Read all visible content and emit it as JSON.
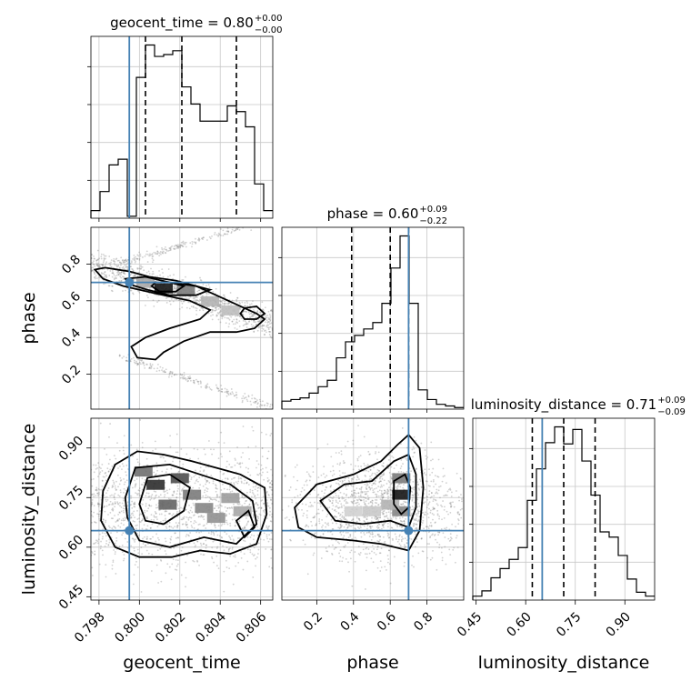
{
  "chart_data": {
    "type": "corner",
    "truth_color": "#4682b4",
    "hist_color": "#000000",
    "parameters": [
      {
        "name": "geocent_time",
        "axis_label": "geocent_time",
        "range": [
          0.7976,
          0.8066
        ],
        "ticks": [
          0.798,
          0.8,
          0.802,
          0.804,
          0.806
        ],
        "tick_labels": [
          "0.798",
          "0.800",
          "0.802",
          "0.804",
          "0.806"
        ],
        "truth": 0.7995,
        "quantile_lines": [
          0.8003,
          0.8021,
          0.8048
        ],
        "title": {
          "label": "geocent_time",
          "median": "0.80",
          "plus": "+0.00",
          "minus": "−0.00"
        },
        "histogram": {
          "bins": [
            0.7976,
            0.79805,
            0.7985,
            0.79895,
            0.7994,
            0.79985,
            0.8003,
            0.80075,
            0.8012,
            0.80165,
            0.8021,
            0.80255,
            0.803,
            0.80345,
            0.8039,
            0.80435,
            0.8048,
            0.80525,
            0.8057,
            0.80615,
            0.8066
          ],
          "counts": [
            0.2,
            0.7,
            1.4,
            1.55,
            0.05,
            3.7,
            4.55,
            4.25,
            4.3,
            4.4,
            3.45,
            3.0,
            2.55,
            2.55,
            2.55,
            2.95,
            2.8,
            2.4,
            0.9,
            0.2
          ]
        }
      },
      {
        "name": "phase",
        "axis_label": "phase",
        "range": [
          0.01,
          1.0
        ],
        "ticks": [
          0.2,
          0.4,
          0.6,
          0.8
        ],
        "tick_labels": [
          "0.2",
          "0.4",
          "0.6",
          "0.8"
        ],
        "truth": 0.7,
        "quantile_lines": [
          0.39,
          0.6,
          0.7
        ],
        "title": {
          "label": "phase",
          "median": "0.60",
          "plus": "+0.09",
          "minus": "−0.22"
        },
        "histogram": {
          "bins": [
            0.01,
            0.0595,
            0.109,
            0.1585,
            0.208,
            0.2575,
            0.307,
            0.3565,
            0.406,
            0.4555,
            0.505,
            0.5545,
            0.604,
            0.6535,
            0.703,
            0.7525,
            0.802,
            0.8515,
            0.901,
            0.9505,
            1.0
          ],
          "counts": [
            0.25,
            0.3,
            0.35,
            0.5,
            0.7,
            0.9,
            1.6,
            2.1,
            2.3,
            2.5,
            2.7,
            3.3,
            4.4,
            5.4,
            3.3,
            0.6,
            0.3,
            0.15,
            0.1,
            0.05
          ]
        }
      },
      {
        "name": "luminosity_distance",
        "axis_label": "luminosity_distance",
        "range": [
          0.44,
          0.99
        ],
        "ticks": [
          0.45,
          0.6,
          0.75,
          0.9
        ],
        "tick_labels": [
          "0.45",
          "0.60",
          "0.75",
          "0.90"
        ],
        "truth": 0.65,
        "quantile_lines": [
          0.62,
          0.715,
          0.81
        ],
        "title": {
          "label": "luminosity_distance",
          "median": "0.71",
          "plus": "+0.09",
          "minus": "−0.09"
        },
        "histogram": {
          "bins": [
            0.44,
            0.4675,
            0.495,
            0.5225,
            0.55,
            0.5775,
            0.605,
            0.6325,
            0.66,
            0.6875,
            0.715,
            0.7425,
            0.77,
            0.7975,
            0.825,
            0.8525,
            0.88,
            0.9075,
            0.935,
            0.9625,
            0.99
          ],
          "counts": [
            0.15,
            0.35,
            0.85,
            1.2,
            1.55,
            2.0,
            3.8,
            5.0,
            6.0,
            6.6,
            5.95,
            6.5,
            5.3,
            4.0,
            2.6,
            2.4,
            1.7,
            0.8,
            0.3,
            0.15
          ]
        }
      }
    ],
    "joint": [
      {
        "x": "geocent_time",
        "y": "phase",
        "samples_description": "dense band of points from upper-left to lower-right plus two faint diagonal bands",
        "density_cells": [
          {
            "x": 0.8012,
            "y": 0.67,
            "level": 0.95
          },
          {
            "x": 0.8023,
            "y": 0.66,
            "level": 0.5
          },
          {
            "x": 0.8003,
            "y": 0.7,
            "level": 0.3
          },
          {
            "x": 0.8035,
            "y": 0.6,
            "level": 0.25
          },
          {
            "x": 0.8045,
            "y": 0.55,
            "level": 0.2
          }
        ],
        "contours": [
          [
            [
              0.7978,
              0.77
            ],
            [
              0.7983,
              0.78
            ],
            [
              0.7995,
              0.76
            ],
            [
              0.8005,
              0.73
            ],
            [
              0.8018,
              0.71
            ],
            [
              0.8028,
              0.68
            ],
            [
              0.8038,
              0.63
            ],
            [
              0.8048,
              0.58
            ],
            [
              0.8058,
              0.53
            ],
            [
              0.8062,
              0.5
            ],
            [
              0.8057,
              0.45
            ],
            [
              0.8048,
              0.43
            ],
            [
              0.8035,
              0.43
            ],
            [
              0.8022,
              0.38
            ],
            [
              0.8012,
              0.32
            ],
            [
              0.8008,
              0.28
            ],
            [
              0.7999,
              0.29
            ],
            [
              0.7996,
              0.35
            ],
            [
              0.8003,
              0.4
            ],
            [
              0.8015,
              0.45
            ],
            [
              0.803,
              0.5
            ],
            [
              0.8035,
              0.55
            ],
            [
              0.8025,
              0.6
            ],
            [
              0.8008,
              0.64
            ],
            [
              0.7992,
              0.68
            ],
            [
              0.7982,
              0.72
            ],
            [
              0.7978,
              0.77
            ]
          ],
          [
            [
              0.7993,
              0.72
            ],
            [
              0.8003,
              0.73
            ],
            [
              0.8015,
              0.7
            ],
            [
              0.8028,
              0.68
            ],
            [
              0.8035,
              0.66
            ],
            [
              0.8028,
              0.63
            ],
            [
              0.8015,
              0.63
            ],
            [
              0.8004,
              0.66
            ],
            [
              0.7995,
              0.69
            ],
            [
              0.7993,
              0.72
            ]
          ],
          [
            [
              0.8008,
              0.7
            ],
            [
              0.8015,
              0.7
            ],
            [
              0.8022,
              0.68
            ],
            [
              0.8018,
              0.65
            ],
            [
              0.801,
              0.65
            ],
            [
              0.8006,
              0.68
            ],
            [
              0.8008,
              0.7
            ]
          ],
          [
            [
              0.8052,
              0.56
            ],
            [
              0.8058,
              0.57
            ],
            [
              0.8062,
              0.53
            ],
            [
              0.8058,
              0.5
            ],
            [
              0.8052,
              0.5
            ],
            [
              0.805,
              0.53
            ],
            [
              0.8052,
              0.56
            ]
          ]
        ]
      },
      {
        "x": "geocent_time",
        "y": "luminosity_distance",
        "samples_description": "broad cloud of points across the full range",
        "density_cells": [
          {
            "x": 0.8002,
            "y": 0.83,
            "level": 0.55
          },
          {
            "x": 0.8008,
            "y": 0.79,
            "level": 0.85
          },
          {
            "x": 0.8014,
            "y": 0.73,
            "level": 0.6
          },
          {
            "x": 0.802,
            "y": 0.81,
            "level": 0.7
          },
          {
            "x": 0.8026,
            "y": 0.76,
            "level": 0.5
          },
          {
            "x": 0.8032,
            "y": 0.72,
            "level": 0.45
          },
          {
            "x": 0.8038,
            "y": 0.69,
            "level": 0.4
          },
          {
            "x": 0.8045,
            "y": 0.75,
            "level": 0.35
          },
          {
            "x": 0.8051,
            "y": 0.71,
            "level": 0.3
          }
        ],
        "contours": [
          [
            [
              0.7982,
              0.77
            ],
            [
              0.7988,
              0.85
            ],
            [
              0.7999,
              0.89
            ],
            [
              0.8012,
              0.88
            ],
            [
              0.8026,
              0.86
            ],
            [
              0.8038,
              0.84
            ],
            [
              0.805,
              0.82
            ],
            [
              0.8062,
              0.78
            ],
            [
              0.8063,
              0.7
            ],
            [
              0.8058,
              0.61
            ],
            [
              0.8045,
              0.58
            ],
            [
              0.803,
              0.59
            ],
            [
              0.8016,
              0.57
            ],
            [
              0.8,
              0.57
            ],
            [
              0.7988,
              0.6
            ],
            [
              0.7981,
              0.68
            ],
            [
              0.7982,
              0.77
            ]
          ],
          [
            [
              0.7993,
              0.75
            ],
            [
              0.7998,
              0.84
            ],
            [
              0.8015,
              0.85
            ],
            [
              0.803,
              0.82
            ],
            [
              0.8045,
              0.79
            ],
            [
              0.8056,
              0.74
            ],
            [
              0.8058,
              0.67
            ],
            [
              0.8048,
              0.61
            ],
            [
              0.8032,
              0.63
            ],
            [
              0.8015,
              0.6
            ],
            [
              0.8,
              0.62
            ],
            [
              0.7994,
              0.69
            ],
            [
              0.7993,
              0.75
            ]
          ],
          [
            [
              0.8,
              0.73
            ],
            [
              0.8004,
              0.81
            ],
            [
              0.8015,
              0.82
            ],
            [
              0.8025,
              0.78
            ],
            [
              0.8022,
              0.71
            ],
            [
              0.8012,
              0.67
            ],
            [
              0.8003,
              0.68
            ],
            [
              0.8,
              0.73
            ]
          ],
          [
            [
              0.8048,
              0.68
            ],
            [
              0.8054,
              0.71
            ],
            [
              0.8057,
              0.66
            ],
            [
              0.8052,
              0.63
            ],
            [
              0.8048,
              0.68
            ]
          ]
        ]
      },
      {
        "x": "phase",
        "y": "luminosity_distance",
        "samples_description": "cloud concentrated near phase 0.6-0.7",
        "density_cells": [
          {
            "x": 0.66,
            "y": 0.76,
            "level": 0.95
          },
          {
            "x": 0.66,
            "y": 0.81,
            "level": 0.5
          },
          {
            "x": 0.66,
            "y": 0.71,
            "level": 0.45
          },
          {
            "x": 0.6,
            "y": 0.73,
            "level": 0.25
          },
          {
            "x": 0.5,
            "y": 0.71,
            "level": 0.15
          },
          {
            "x": 0.4,
            "y": 0.71,
            "level": 0.12
          }
        ],
        "contours": [
          [
            [
              0.08,
              0.72
            ],
            [
              0.2,
              0.79
            ],
            [
              0.4,
              0.82
            ],
            [
              0.55,
              0.86
            ],
            [
              0.64,
              0.91
            ],
            [
              0.7,
              0.94
            ],
            [
              0.76,
              0.9
            ],
            [
              0.78,
              0.78
            ],
            [
              0.76,
              0.65
            ],
            [
              0.7,
              0.59
            ],
            [
              0.55,
              0.61
            ],
            [
              0.4,
              0.62
            ],
            [
              0.2,
              0.63
            ],
            [
              0.1,
              0.66
            ],
            [
              0.08,
              0.72
            ]
          ],
          [
            [
              0.22,
              0.74
            ],
            [
              0.35,
              0.79
            ],
            [
              0.5,
              0.8
            ],
            [
              0.62,
              0.86
            ],
            [
              0.7,
              0.88
            ],
            [
              0.74,
              0.82
            ],
            [
              0.74,
              0.72
            ],
            [
              0.7,
              0.66
            ],
            [
              0.6,
              0.68
            ],
            [
              0.45,
              0.67
            ],
            [
              0.3,
              0.68
            ],
            [
              0.22,
              0.74
            ]
          ],
          [
            [
              0.62,
              0.8
            ],
            [
              0.68,
              0.82
            ],
            [
              0.71,
              0.78
            ],
            [
              0.7,
              0.72
            ],
            [
              0.66,
              0.7
            ],
            [
              0.62,
              0.73
            ],
            [
              0.62,
              0.8
            ]
          ]
        ]
      }
    ]
  }
}
